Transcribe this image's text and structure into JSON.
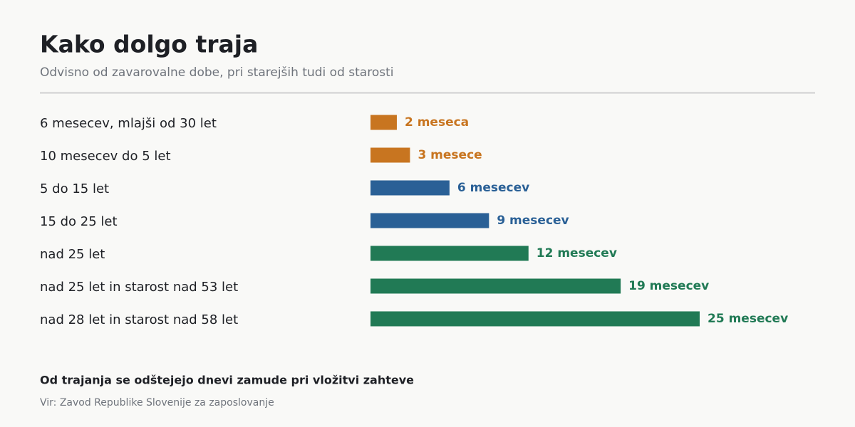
{
  "chart_data": {
    "type": "bar",
    "orientation": "horizontal",
    "title": "Kako dolgo traja",
    "subtitle": "Odvisno od zavarovalne dobe, pri starejših tudi od starosti",
    "categories": [
      "6 mesecev, mlajši od 30 let",
      "10 mesecev do 5 let",
      "5 do 15 let",
      "15 do 25 let",
      "nad 25 let",
      "nad 25 let in starost nad 53 let",
      "nad 28 let in starost nad 58 let"
    ],
    "values": [
      2,
      3,
      6,
      9,
      12,
      19,
      25
    ],
    "value_labels": [
      "2 meseca",
      "3 mesece",
      "6 mesecev",
      "9 mesecev",
      "12 mesecev",
      "19 mesecev",
      "25 mesecev"
    ],
    "colors": [
      "#c87520",
      "#c87520",
      "#2a6096",
      "#2a6096",
      "#217a55",
      "#217a55",
      "#217a55"
    ],
    "note": "Od trajanja se odštejejo dnevi zamude pri vložitvi zahteve",
    "source": "Vir: Zavod Republike Slovenije za zaposlovanje"
  }
}
